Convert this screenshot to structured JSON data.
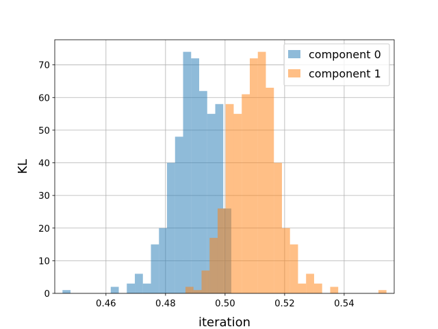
{
  "chart_data": {
    "type": "bar",
    "subtype": "overlapping-histogram",
    "title": "",
    "xlabel": "iteration",
    "ylabel": "KL",
    "xlim": [
      0.4428,
      0.5568
    ],
    "ylim": [
      0,
      77.7
    ],
    "x_ticks": [
      "0.46",
      "0.48",
      "0.50",
      "0.52",
      "0.54"
    ],
    "x_tick_values": [
      0.46,
      0.48,
      0.5,
      0.52,
      0.54
    ],
    "y_ticks": [
      "0",
      "10",
      "20",
      "30",
      "40",
      "50",
      "60",
      "70"
    ],
    "y_tick_values": [
      0,
      10,
      20,
      30,
      40,
      50,
      60,
      70
    ],
    "grid": true,
    "legend_position": "upper right",
    "series": [
      {
        "name": "component 0",
        "color": "#1f77b4",
        "alpha": 0.5,
        "bin_width": 0.0027,
        "bins": [
          [
            0.4454,
            1
          ],
          [
            0.4481,
            0
          ],
          [
            0.4508,
            0
          ],
          [
            0.4535,
            0
          ],
          [
            0.4562,
            0
          ],
          [
            0.4589,
            0
          ],
          [
            0.4616,
            2
          ],
          [
            0.4643,
            0
          ],
          [
            0.467,
            3
          ],
          [
            0.4697,
            6
          ],
          [
            0.4724,
            3
          ],
          [
            0.4751,
            15
          ],
          [
            0.4778,
            20
          ],
          [
            0.4805,
            40
          ],
          [
            0.4832,
            48
          ],
          [
            0.4859,
            74
          ],
          [
            0.4886,
            72
          ],
          [
            0.4913,
            62
          ],
          [
            0.494,
            55
          ],
          [
            0.4967,
            58
          ],
          [
            0.4994,
            26
          ]
        ]
      },
      {
        "name": "component 1",
        "color": "#ff7f0e",
        "alpha": 0.5,
        "bin_width": 0.0027,
        "bins": [
          [
            0.4867,
            2
          ],
          [
            0.4894,
            1
          ],
          [
            0.4921,
            7
          ],
          [
            0.4948,
            17
          ],
          [
            0.4975,
            26
          ],
          [
            0.5002,
            58
          ],
          [
            0.5029,
            55
          ],
          [
            0.5056,
            61
          ],
          [
            0.5083,
            72
          ],
          [
            0.511,
            74
          ],
          [
            0.5137,
            63
          ],
          [
            0.5164,
            40
          ],
          [
            0.5191,
            20
          ],
          [
            0.5218,
            15
          ],
          [
            0.5245,
            3
          ],
          [
            0.5272,
            6
          ],
          [
            0.5299,
            3
          ],
          [
            0.5326,
            0
          ],
          [
            0.5353,
            2
          ],
          [
            0.538,
            0
          ],
          [
            0.5407,
            0
          ],
          [
            0.5434,
            0
          ],
          [
            0.5461,
            0
          ],
          [
            0.5488,
            0
          ],
          [
            0.5515,
            1
          ]
        ]
      }
    ]
  }
}
